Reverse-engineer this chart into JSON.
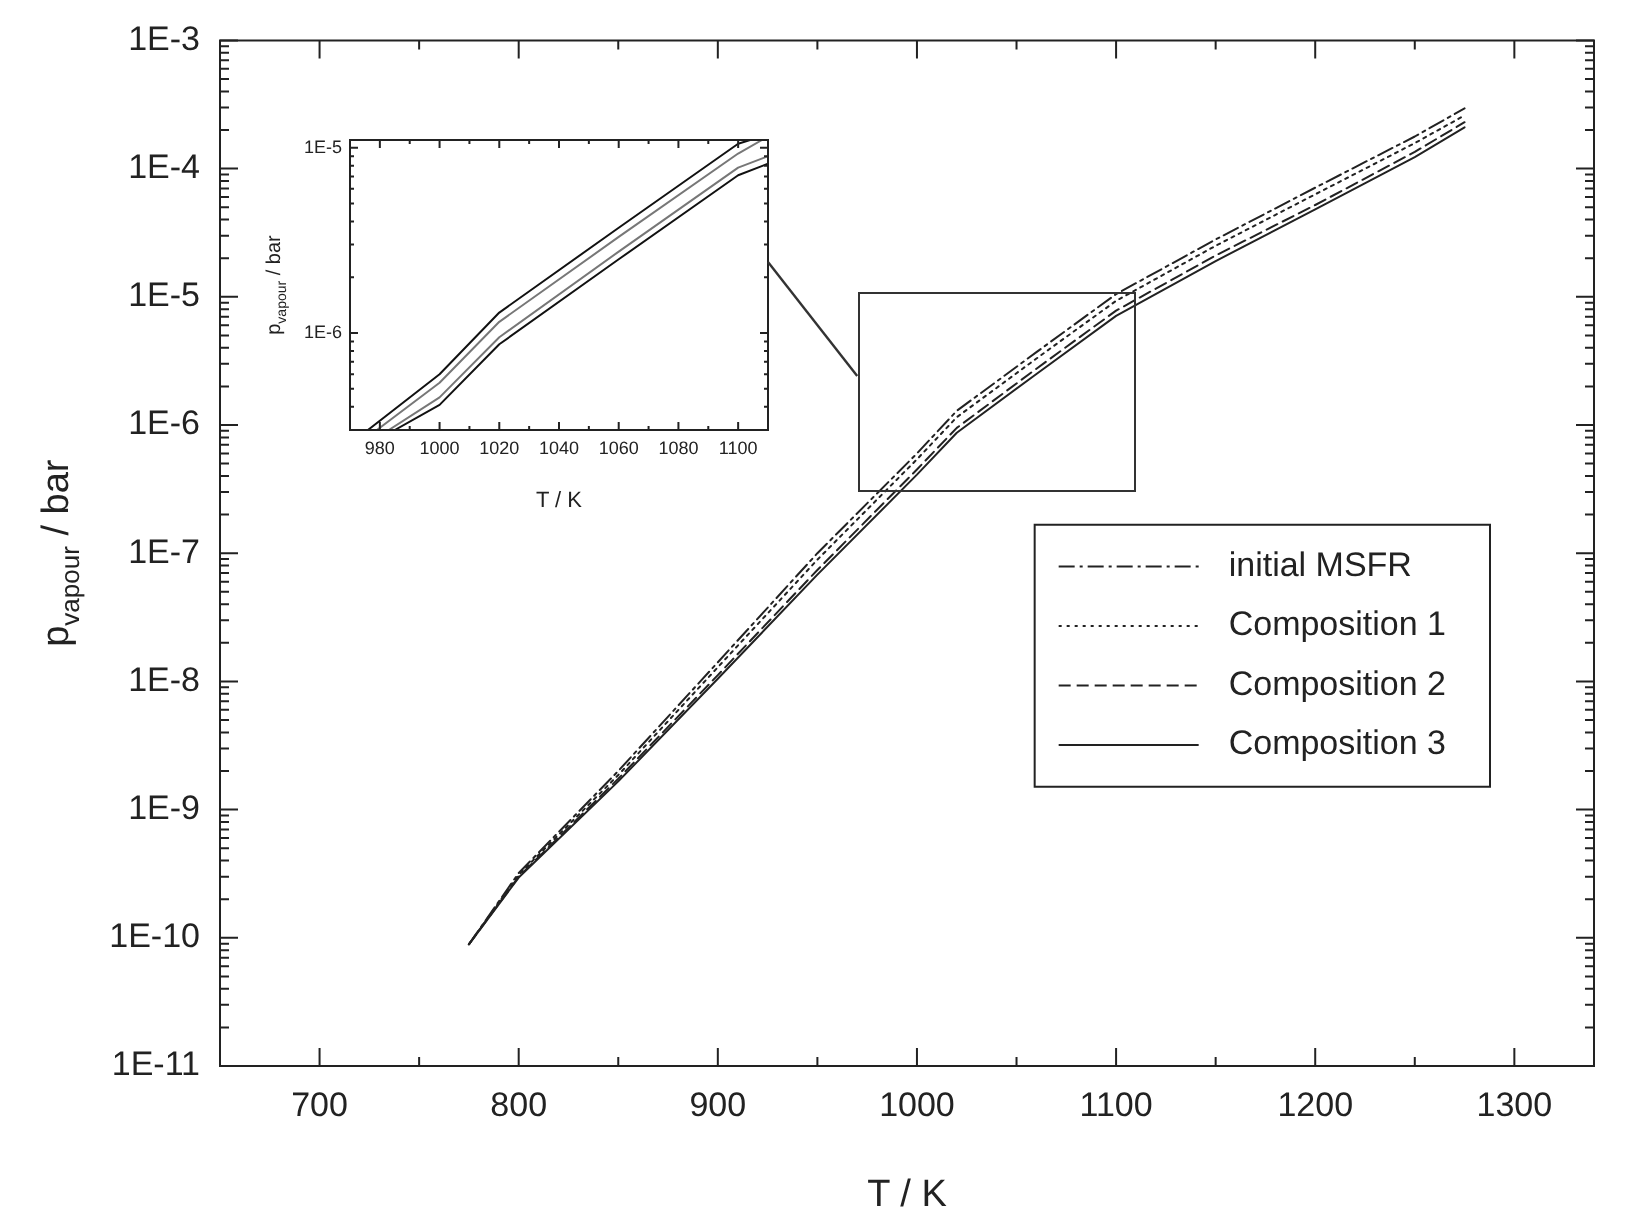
{
  "chart_data": [
    {
      "type": "line",
      "xlabel": "T / K",
      "ylabel": "p$_{vapour}$ / bar",
      "xlim": [
        650,
        1340
      ],
      "xticks": [
        700,
        800,
        900,
        1000,
        1100,
        1200,
        1300
      ],
      "ylim": [
        1e-11,
        0.001
      ],
      "yticks": [
        {
          "value": 1e-11,
          "label": "1E-11"
        },
        {
          "value": 1e-10,
          "label": "1E-10"
        },
        {
          "value": 1e-09,
          "label": "1E-9"
        },
        {
          "value": 1e-08,
          "label": "1E-8"
        },
        {
          "value": 1e-07,
          "label": "1E-7"
        },
        {
          "value": 1e-06,
          "label": "1E-6"
        },
        {
          "value": 1e-05,
          "label": "1E-5"
        },
        {
          "value": 0.0001,
          "label": "1E-4"
        },
        {
          "value": 0.001,
          "label": "1E-3"
        }
      ],
      "log": "y",
      "legend": "right",
      "x": [
        775,
        800,
        850,
        900,
        950,
        1000,
        1020,
        1060,
        1100,
        1150,
        1200,
        1250,
        1275
      ],
      "series": [
        {
          "name": "initial MSFR",
          "color": "#222222",
          "line_style": "dashdot",
          "values": [
            8.9e-11,
            3.2e-10,
            2e-09,
            1.41e-08,
            1e-07,
            6e-07,
            1.29e-06,
            3.7e-06,
            1.05e-05,
            2.8e-05,
            7.1e-05,
            0.000178,
            0.000295
          ]
        },
        {
          "name": "Composition 1",
          "color": "#222222",
          "line_style": "dotted",
          "values": [
            8.9e-11,
            3.1e-10,
            1.86e-09,
            1.29e-08,
            8.9e-08,
            5.4e-07,
            1.15e-06,
            3.3e-06,
            9.3e-06,
            2.5e-05,
            6.3e-05,
            0.000158,
            0.00026
          ]
        },
        {
          "name": "Composition 2",
          "color": "#222222",
          "line_style": "dashed",
          "values": [
            8.9e-11,
            3e-10,
            1.74e-09,
            1.12e-08,
            7.4e-08,
            4.5e-07,
            9.5e-07,
            2.75e-06,
            7.8e-06,
            2.1e-05,
            5.2e-05,
            0.000135,
            0.00023
          ]
        },
        {
          "name": "Composition 3",
          "color": "#222222",
          "line_style": "solid",
          "values": [
            8.9e-11,
            2.95e-10,
            1.66e-09,
            1.05e-08,
            6.8e-08,
            4.1e-07,
            8.7e-07,
            2.5e-06,
            7.1e-06,
            1.9e-05,
            4.8e-05,
            0.000123,
            0.00021
          ]
        }
      ]
    },
    {
      "type": "line",
      "xlabel": "T / K",
      "ylabel": "p$_{vapour}$ / bar",
      "xlim": [
        970,
        1110
      ],
      "xticks": [
        980,
        1000,
        1020,
        1040,
        1060,
        1080,
        1100
      ],
      "ylim": [
        3e-07,
        1.1e-05
      ],
      "yticks": [
        {
          "value": 1e-06,
          "label": "1E-6"
        },
        {
          "value": 1e-05,
          "label": "1E-5"
        }
      ],
      "log": "y",
      "series": [
        {
          "color": "#111111",
          "x": [
            976,
            1000,
            1020,
            1060,
            1100,
            1104
          ],
          "values": [
            3e-07,
            6e-07,
            1.29e-06,
            3.7e-06,
            1.05e-05,
            1.1e-05
          ]
        },
        {
          "color": "#777777",
          "x": [
            979,
            1000,
            1020,
            1060,
            1100,
            1108
          ],
          "values": [
            3e-07,
            5.4e-07,
            1.15e-06,
            3.3e-06,
            9.3e-06,
            1.1e-05
          ]
        },
        {
          "color": "#777777",
          "x": [
            983,
            1000,
            1020,
            1060,
            1100,
            1110
          ],
          "values": [
            3e-07,
            4.5e-07,
            9.5e-07,
            2.75e-06,
            7.8e-06,
            9e-06
          ]
        },
        {
          "color": "#111111",
          "x": [
            985,
            1000,
            1020,
            1060,
            1100,
            1110
          ],
          "values": [
            3e-07,
            4.1e-07,
            8.7e-07,
            2.5e-06,
            7.1e-06,
            8.2e-06
          ]
        }
      ]
    }
  ]
}
